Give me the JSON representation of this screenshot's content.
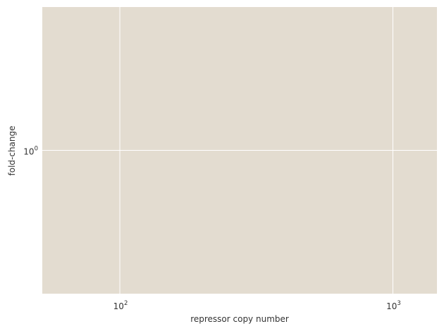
{
  "chart_data": {
    "type": "line",
    "title": "",
    "xlabel": "repressor copy number",
    "ylabel": "fold-change",
    "xscale": "log",
    "yscale": "log",
    "xlim": [
      52,
      1450
    ],
    "ylim": [
      0.2,
      5.0
    ],
    "grid": true,
    "legend": "none",
    "x_ticks": [
      {
        "value": 100,
        "base": "10",
        "exp": "2"
      },
      {
        "value": 1000,
        "base": "10",
        "exp": "3"
      }
    ],
    "y_ticks": [
      {
        "value": 1,
        "base": "10",
        "exp": "0"
      }
    ],
    "series": []
  },
  "colors": {
    "plot_background": "#e3dcd0",
    "grid": "#ffffff",
    "text": "#333333"
  }
}
